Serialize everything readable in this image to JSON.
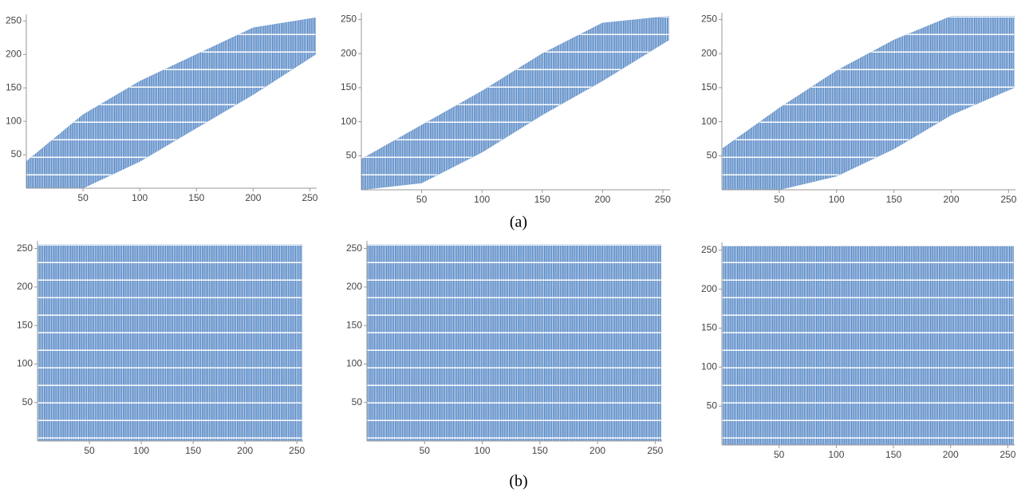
{
  "chart_data": [
    {
      "type": "band",
      "color": "#4a7fc1",
      "xlim": [
        0,
        256
      ],
      "ylim": [
        0,
        260
      ],
      "xticks": [
        50,
        100,
        150,
        200,
        250
      ],
      "yticks": [
        50,
        100,
        150,
        200,
        250
      ],
      "band": {
        "x": [
          0,
          50,
          100,
          150,
          200,
          255
        ],
        "lower": [
          0,
          0,
          40,
          90,
          140,
          200
        ],
        "upper": [
          40,
          110,
          160,
          200,
          240,
          255
        ]
      }
    },
    {
      "type": "band",
      "color": "#4a7fc1",
      "xlim": [
        0,
        256
      ],
      "ylim": [
        0,
        260
      ],
      "xticks": [
        50,
        100,
        150,
        200,
        250
      ],
      "yticks": [
        50,
        100,
        150,
        200,
        250
      ],
      "band": {
        "x": [
          0,
          50,
          100,
          150,
          200,
          255
        ],
        "lower": [
          0,
          10,
          55,
          110,
          160,
          220
        ],
        "upper": [
          45,
          95,
          145,
          200,
          245,
          255
        ]
      }
    },
    {
      "type": "band",
      "color": "#4a7fc1",
      "xlim": [
        0,
        256
      ],
      "ylim": [
        0,
        260
      ],
      "xticks": [
        50,
        100,
        150,
        200,
        250
      ],
      "yticks": [
        50,
        100,
        150,
        200,
        250
      ],
      "band": {
        "x": [
          0,
          50,
          100,
          150,
          200,
          255
        ],
        "lower": [
          0,
          0,
          20,
          60,
          110,
          150
        ],
        "upper": [
          60,
          120,
          175,
          220,
          255,
          255
        ]
      }
    },
    {
      "type": "band",
      "color": "#4a7fc1",
      "xlim": [
        0,
        256
      ],
      "ylim": [
        0,
        260
      ],
      "xticks": [
        50,
        100,
        150,
        200,
        250
      ],
      "yticks": [
        50,
        100,
        150,
        200,
        250
      ],
      "band": {
        "x": [
          0,
          255
        ],
        "lower": [
          0,
          0
        ],
        "upper": [
          255,
          255
        ]
      }
    },
    {
      "type": "band",
      "color": "#4a7fc1",
      "xlim": [
        0,
        256
      ],
      "ylim": [
        0,
        260
      ],
      "xticks": [
        50,
        100,
        150,
        200,
        250
      ],
      "yticks": [
        50,
        100,
        150,
        200,
        250
      ],
      "band": {
        "x": [
          0,
          255
        ],
        "lower": [
          0,
          0
        ],
        "upper": [
          255,
          255
        ]
      }
    },
    {
      "type": "band",
      "color": "#4a7fc1",
      "xlim": [
        0,
        256
      ],
      "ylim": [
        0,
        260
      ],
      "xticks": [
        50,
        100,
        150,
        200,
        250
      ],
      "yticks": [
        50,
        100,
        150,
        200,
        250
      ],
      "band": {
        "x": [
          0,
          255
        ],
        "lower": [
          0,
          0
        ],
        "upper": [
          255,
          255
        ]
      }
    }
  ],
  "captions": [
    "(a)",
    "(b)"
  ]
}
